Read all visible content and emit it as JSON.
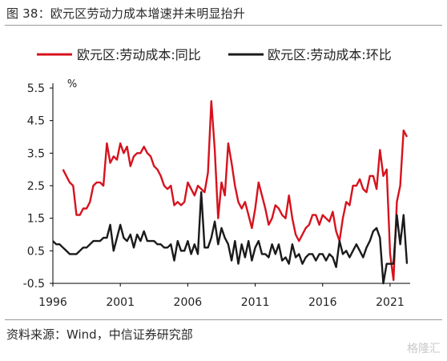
{
  "header": {
    "title": "图 38：欧元区劳动力成本增速并未明显抬升"
  },
  "footer": {
    "source": "资料来源：Wind，中信证券研究部"
  },
  "watermark": {
    "text": "格隆汇"
  },
  "colors": {
    "series_yoy": "#d7121d",
    "series_qoq": "#1a1a1a",
    "axis": "#000000",
    "text": "#222222"
  },
  "chart_data": {
    "type": "line",
    "ylabel": "%",
    "ylim": [
      -0.5,
      5.5
    ],
    "yticks": [
      -0.5,
      0.5,
      1.5,
      2.5,
      3.5,
      4.5,
      5.5
    ],
    "xlim": [
      1996.0,
      2022.25
    ],
    "xticks": [
      1996,
      2001,
      2006,
      2011,
      2016,
      2021
    ],
    "legend_position": "top",
    "grid": false,
    "series": [
      {
        "name": "欧元区:劳动成本:同比",
        "color": "#d7121d",
        "points": [
          [
            1996.75,
            3.0
          ],
          [
            1997.0,
            2.8
          ],
          [
            1997.25,
            2.6
          ],
          [
            1997.5,
            2.5
          ],
          [
            1997.75,
            1.6
          ],
          [
            1998.0,
            1.6
          ],
          [
            1998.25,
            1.8
          ],
          [
            1998.5,
            1.8
          ],
          [
            1998.75,
            2.0
          ],
          [
            1999.0,
            2.5
          ],
          [
            1999.25,
            2.6
          ],
          [
            1999.5,
            2.6
          ],
          [
            1999.75,
            2.5
          ],
          [
            2000.0,
            3.8
          ],
          [
            2000.25,
            3.2
          ],
          [
            2000.5,
            3.4
          ],
          [
            2000.75,
            3.3
          ],
          [
            2001.0,
            3.8
          ],
          [
            2001.25,
            3.5
          ],
          [
            2001.5,
            3.7
          ],
          [
            2001.75,
            3.1
          ],
          [
            2002.0,
            3.4
          ],
          [
            2002.25,
            3.5
          ],
          [
            2002.5,
            3.5
          ],
          [
            2002.75,
            3.7
          ],
          [
            2003.0,
            3.5
          ],
          [
            2003.25,
            3.4
          ],
          [
            2003.5,
            3.1
          ],
          [
            2003.75,
            3.0
          ],
          [
            2004.0,
            2.8
          ],
          [
            2004.25,
            2.5
          ],
          [
            2004.5,
            2.4
          ],
          [
            2004.75,
            2.5
          ],
          [
            2005.0,
            1.9
          ],
          [
            2005.25,
            2.0
          ],
          [
            2005.5,
            1.9
          ],
          [
            2005.75,
            2.0
          ],
          [
            2006.0,
            2.6
          ],
          [
            2006.25,
            2.4
          ],
          [
            2006.5,
            2.2
          ],
          [
            2006.75,
            2.5
          ],
          [
            2007.0,
            2.4
          ],
          [
            2007.25,
            2.3
          ],
          [
            2007.5,
            2.9
          ],
          [
            2007.75,
            5.1
          ],
          [
            2008.0,
            3.6
          ],
          [
            2008.25,
            1.5
          ],
          [
            2008.5,
            2.6
          ],
          [
            2008.75,
            2.2
          ],
          [
            2009.0,
            3.8
          ],
          [
            2009.25,
            3.2
          ],
          [
            2009.5,
            2.5
          ],
          [
            2009.75,
            2.0
          ],
          [
            2010.0,
            1.8
          ],
          [
            2010.25,
            2.0
          ],
          [
            2010.5,
            1.6
          ],
          [
            2010.75,
            1.2
          ],
          [
            2011.0,
            1.8
          ],
          [
            2011.25,
            2.6
          ],
          [
            2011.5,
            2.2
          ],
          [
            2011.75,
            1.8
          ],
          [
            2012.0,
            1.3
          ],
          [
            2012.25,
            1.5
          ],
          [
            2012.5,
            1.9
          ],
          [
            2012.75,
            1.8
          ],
          [
            2013.0,
            1.6
          ],
          [
            2013.25,
            1.5
          ],
          [
            2013.5,
            2.2
          ],
          [
            2013.75,
            1.5
          ],
          [
            2014.0,
            1.0
          ],
          [
            2014.25,
            0.8
          ],
          [
            2014.5,
            1.0
          ],
          [
            2014.75,
            1.2
          ],
          [
            2015.0,
            1.3
          ],
          [
            2015.25,
            1.6
          ],
          [
            2015.5,
            1.6
          ],
          [
            2015.75,
            1.3
          ],
          [
            2016.0,
            1.6
          ],
          [
            2016.25,
            1.5
          ],
          [
            2016.5,
            1.4
          ],
          [
            2016.75,
            1.7
          ],
          [
            2017.0,
            1.1
          ],
          [
            2017.25,
            0.8
          ],
          [
            2017.5,
            1.5
          ],
          [
            2017.75,
            2.0
          ],
          [
            2018.0,
            1.9
          ],
          [
            2018.25,
            2.5
          ],
          [
            2018.5,
            2.5
          ],
          [
            2018.75,
            2.7
          ],
          [
            2019.0,
            2.4
          ],
          [
            2019.25,
            2.3
          ],
          [
            2019.5,
            2.8
          ],
          [
            2019.75,
            2.8
          ],
          [
            2020.0,
            2.4
          ],
          [
            2020.25,
            3.6
          ],
          [
            2020.5,
            2.8
          ],
          [
            2020.75,
            3.0
          ],
          [
            2021.0,
            0.4
          ],
          [
            2021.25,
            -0.4
          ],
          [
            2021.5,
            2.0
          ],
          [
            2021.75,
            2.5
          ],
          [
            2022.0,
            4.2
          ],
          [
            2022.25,
            4.0
          ]
        ]
      },
      {
        "name": "欧元区:劳动成本:环比",
        "color": "#1a1a1a",
        "points": [
          [
            1996.0,
            0.8
          ],
          [
            1996.25,
            0.7
          ],
          [
            1996.5,
            0.7
          ],
          [
            1996.75,
            0.6
          ],
          [
            1997.0,
            0.5
          ],
          [
            1997.25,
            0.4
          ],
          [
            1997.5,
            0.4
          ],
          [
            1997.75,
            0.4
          ],
          [
            1998.0,
            0.5
          ],
          [
            1998.25,
            0.6
          ],
          [
            1998.5,
            0.6
          ],
          [
            1998.75,
            0.7
          ],
          [
            1999.0,
            0.8
          ],
          [
            1999.25,
            0.8
          ],
          [
            1999.5,
            0.8
          ],
          [
            1999.75,
            0.9
          ],
          [
            2000.0,
            0.9
          ],
          [
            2000.25,
            1.3
          ],
          [
            2000.5,
            0.5
          ],
          [
            2000.75,
            0.9
          ],
          [
            2001.0,
            1.3
          ],
          [
            2001.25,
            0.9
          ],
          [
            2001.5,
            0.8
          ],
          [
            2001.75,
            1.0
          ],
          [
            2002.0,
            0.6
          ],
          [
            2002.25,
            1.0
          ],
          [
            2002.5,
            0.8
          ],
          [
            2002.75,
            1.1
          ],
          [
            2003.0,
            0.8
          ],
          [
            2003.25,
            0.8
          ],
          [
            2003.5,
            0.8
          ],
          [
            2003.75,
            0.7
          ],
          [
            2004.0,
            0.7
          ],
          [
            2004.25,
            0.6
          ],
          [
            2004.5,
            0.6
          ],
          [
            2004.75,
            0.7
          ],
          [
            2005.0,
            0.2
          ],
          [
            2005.25,
            0.8
          ],
          [
            2005.5,
            0.5
          ],
          [
            2005.75,
            0.5
          ],
          [
            2006.0,
            0.8
          ],
          [
            2006.25,
            0.4
          ],
          [
            2006.5,
            0.7
          ],
          [
            2006.75,
            0.4
          ],
          [
            2007.0,
            2.3
          ],
          [
            2007.25,
            0.6
          ],
          [
            2007.5,
            0.6
          ],
          [
            2007.75,
            0.9
          ],
          [
            2008.0,
            1.4
          ],
          [
            2008.25,
            0.7
          ],
          [
            2008.5,
            1.2
          ],
          [
            2008.75,
            0.9
          ],
          [
            2009.0,
            0.7
          ],
          [
            2009.25,
            0.2
          ],
          [
            2009.5,
            0.8
          ],
          [
            2009.75,
            0.1
          ],
          [
            2010.0,
            0.7
          ],
          [
            2010.25,
            0.3
          ],
          [
            2010.5,
            0.8
          ],
          [
            2010.75,
            0.2
          ],
          [
            2011.0,
            0.6
          ],
          [
            2011.25,
            0.8
          ],
          [
            2011.5,
            0.4
          ],
          [
            2011.75,
            0.4
          ],
          [
            2012.0,
            0.3
          ],
          [
            2012.25,
            0.7
          ],
          [
            2012.5,
            0.4
          ],
          [
            2012.75,
            0.7
          ],
          [
            2013.0,
            0.2
          ],
          [
            2013.25,
            0.3
          ],
          [
            2013.5,
            0.1
          ],
          [
            2013.75,
            0.7
          ],
          [
            2014.0,
            0.3
          ],
          [
            2014.25,
            0.4
          ],
          [
            2014.5,
            0.1
          ],
          [
            2014.75,
            0.3
          ],
          [
            2015.0,
            0.4
          ],
          [
            2015.25,
            0.4
          ],
          [
            2015.5,
            0.2
          ],
          [
            2015.75,
            0.4
          ],
          [
            2016.0,
            0.4
          ],
          [
            2016.25,
            0.2
          ],
          [
            2016.5,
            0.4
          ],
          [
            2016.75,
            0.3
          ],
          [
            2017.0,
            0.0
          ],
          [
            2017.25,
            0.8
          ],
          [
            2017.5,
            0.4
          ],
          [
            2017.75,
            0.5
          ],
          [
            2018.0,
            0.3
          ],
          [
            2018.25,
            0.5
          ],
          [
            2018.5,
            0.7
          ],
          [
            2018.75,
            0.5
          ],
          [
            2019.0,
            0.3
          ],
          [
            2019.25,
            0.6
          ],
          [
            2019.5,
            0.8
          ],
          [
            2019.75,
            1.1
          ],
          [
            2020.0,
            1.2
          ],
          [
            2020.25,
            0.9
          ],
          [
            2020.5,
            -0.5
          ],
          [
            2020.75,
            0.1
          ],
          [
            2021.0,
            0.1
          ],
          [
            2021.25,
            0.1
          ],
          [
            2021.5,
            1.6
          ],
          [
            2021.75,
            0.7
          ],
          [
            2022.0,
            1.6
          ],
          [
            2022.25,
            0.1
          ]
        ]
      }
    ]
  }
}
